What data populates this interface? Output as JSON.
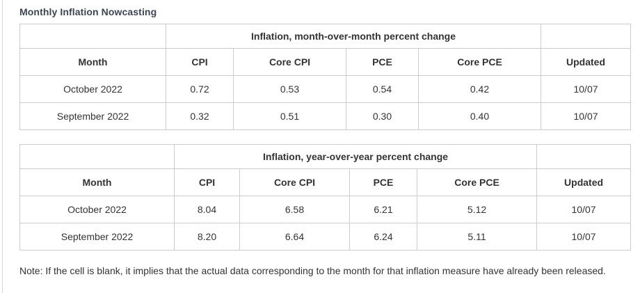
{
  "title": "Monthly Inflation Nowcasting",
  "note": "Note: If the cell is blank, it implies that the actual data corresponding to the month for that inflation measure have already been released.",
  "colors": {
    "background": "#ffffff",
    "table_border": "#cccccc",
    "title_text": "#3d4551",
    "body_text": "#333333"
  },
  "chart_data": [
    {
      "type": "table",
      "title": "Inflation, month-over-month percent change",
      "columns": [
        "Month",
        "CPI",
        "Core CPI",
        "PCE",
        "Core PCE",
        "Updated"
      ],
      "rows": [
        [
          "October 2022",
          "0.72",
          "0.53",
          "0.54",
          "0.42",
          "10/07"
        ],
        [
          "September 2022",
          "0.32",
          "0.51",
          "0.30",
          "0.40",
          "10/07"
        ]
      ]
    },
    {
      "type": "table",
      "title": "Inflation, year-over-year percent change",
      "columns": [
        "Month",
        "CPI",
        "Core CPI",
        "PCE",
        "Core PCE",
        "Updated"
      ],
      "rows": [
        [
          "October 2022",
          "8.04",
          "6.58",
          "6.21",
          "5.12",
          "10/07"
        ],
        [
          "September 2022",
          "8.20",
          "6.64",
          "6.24",
          "5.11",
          "10/07"
        ]
      ]
    }
  ]
}
